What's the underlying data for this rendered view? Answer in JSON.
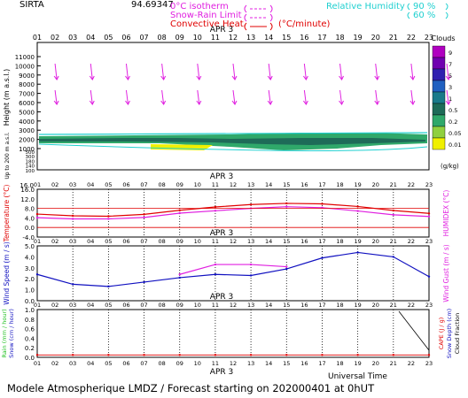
{
  "header": {
    "station": "SIRTA",
    "coords": "94.69347",
    "isotherm_label": "0°C isotherm",
    "snow_rain_label": "Snow-Rain Limit",
    "conv_heat_label": "Convective Heat.",
    "conv_unit": "(°C/minute)",
    "rh_label": "Relative Humidity",
    "rh_90": "90 %",
    "rh_60": "60 %"
  },
  "footer": {
    "universal_time": "Universal Time",
    "model_line": "Modele Atmospherique LMDZ / Forecast starting on 202000401 at 0hUT"
  },
  "colors": {
    "magenta": "#e020e0",
    "red": "#e00000",
    "blue": "#1010c0",
    "cyan": "#20d0d0",
    "green_label": "#20c020"
  },
  "chart_data": [
    {
      "type": "heatmap",
      "panel": "clouds",
      "date_label": "APR 3",
      "x_ticks": [
        "01",
        "02",
        "03",
        "04",
        "05",
        "06",
        "07",
        "08",
        "09",
        "10",
        "11",
        "12",
        "13",
        "14",
        "15",
        "16",
        "17",
        "18",
        "19",
        "20",
        "21",
        "22",
        "23"
      ],
      "y_label": "Height (m a.s.l.)",
      "y_ticks_upper": [
        "11000",
        "10000",
        "9000",
        "8000",
        "7000",
        "6000",
        "5000",
        "4000",
        "3000",
        "2000",
        "1000"
      ],
      "y_ticks_lower": [
        "500",
        "400",
        "300",
        "200",
        "180",
        "160",
        "140",
        "120",
        "100"
      ],
      "y_label_lower": "Up to 200 m a.s.l.",
      "legend_title": "Clouds",
      "legend_unit": "(g/kg)",
      "legend_levels": [
        "9",
        "7",
        "5",
        "3",
        "1",
        "0.5",
        "0.2",
        "0.05",
        "0.01"
      ],
      "cloud_layer_m": [
        1000,
        2000
      ]
    },
    {
      "type": "line",
      "panel": "temperature",
      "date_label": "APR 3",
      "y_label": "Temperature (°C)",
      "y2_label": "HUMIDEX (°C)",
      "y_ticks": [
        "16.0",
        "12.0",
        "8.0",
        "4.0",
        "0.0",
        "-4.0"
      ],
      "ylim": [
        -4,
        16
      ],
      "x": [
        1,
        3,
        5,
        7,
        9,
        11,
        13,
        15,
        17,
        19,
        21,
        23
      ],
      "series": [
        {
          "name": "Temperature",
          "color": "#e00000",
          "values": [
            5.6,
            4.9,
            4.7,
            5.5,
            7.2,
            8.6,
            9.6,
            10.1,
            9.9,
            8.8,
            7.1,
            5.9
          ]
        },
        {
          "name": "Humidex",
          "color": "#e020e0",
          "values": [
            4.1,
            3.6,
            3.6,
            4.2,
            6.0,
            7.0,
            8.0,
            8.7,
            8.3,
            6.9,
            5.3,
            4.6
          ]
        }
      ]
    },
    {
      "type": "line",
      "panel": "wind",
      "date_label": "APR 3",
      "y_label": "Wind Speed (m / s)",
      "y2_label": "Wind Gust (m / s)",
      "y_ticks": [
        "5.0",
        "4.0",
        "3.0",
        "2.0",
        "1.0",
        "0.0"
      ],
      "ylim": [
        0,
        5
      ],
      "x": [
        1,
        3,
        5,
        7,
        9,
        11,
        13,
        15,
        17,
        19,
        21,
        23
      ],
      "series": [
        {
          "name": "Wind Speed",
          "color": "#1010c0",
          "values": [
            2.4,
            1.5,
            1.3,
            1.7,
            2.1,
            2.4,
            2.3,
            2.9,
            3.9,
            4.4,
            4.0,
            2.2
          ]
        },
        {
          "name": "Wind Gust",
          "color": "#e020e0",
          "values": [
            null,
            null,
            null,
            null,
            2.4,
            3.3,
            3.3,
            3.1,
            null,
            null,
            null,
            null
          ]
        }
      ]
    },
    {
      "type": "line",
      "panel": "precip",
      "date_label": "APR 3",
      "y_label": "Rain (mm / hour)",
      "y_label2": "Snow (cm / hour)",
      "y2_label": "CAPE (J / g)",
      "y2_label2": "Snow Depth (cm)",
      "y2_label3": "Cloud Fraction",
      "y_ticks": [
        "1.0",
        "0.8",
        "0.6",
        "0.4",
        "0.2",
        "0.0"
      ],
      "ylim": [
        0,
        1
      ],
      "x": [
        1,
        3,
        5,
        7,
        9,
        11,
        13,
        15,
        17,
        19,
        21,
        23
      ],
      "series": [
        {
          "name": "CAPE",
          "color": "#e00000",
          "values": [
            0.05,
            0.05,
            0.05,
            0.05,
            0.05,
            0.05,
            0.05,
            0.05,
            0.05,
            0.05,
            0.05,
            0.05
          ]
        }
      ]
    }
  ]
}
